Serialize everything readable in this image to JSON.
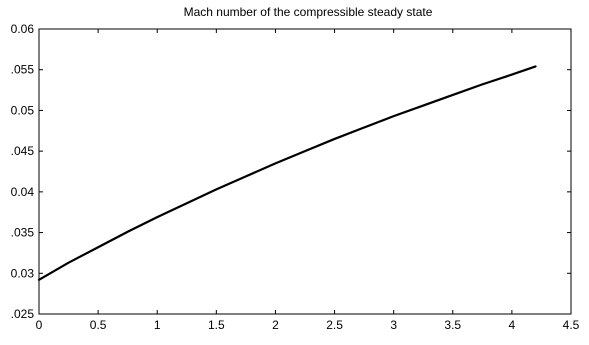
{
  "chart_data": {
    "type": "line",
    "title": "Mach number of the compressible steady state",
    "xlabel": "",
    "ylabel": "",
    "xlim": [
      0,
      4.5
    ],
    "ylim": [
      0.025,
      0.06
    ],
    "grid": false,
    "x_ticks": [
      {
        "value": 0,
        "label": "0"
      },
      {
        "value": 0.5,
        "label": "0.5"
      },
      {
        "value": 1,
        "label": "1"
      },
      {
        "value": 1.5,
        "label": "1.5"
      },
      {
        "value": 2,
        "label": "2"
      },
      {
        "value": 2.5,
        "label": "2.5"
      },
      {
        "value": 3,
        "label": "3"
      },
      {
        "value": 3.5,
        "label": "3.5"
      },
      {
        "value": 4,
        "label": "4"
      },
      {
        "value": 4.5,
        "label": "4.5"
      }
    ],
    "y_ticks": [
      {
        "value": 0.025,
        "label": ".025"
      },
      {
        "value": 0.03,
        "label": "0.03"
      },
      {
        "value": 0.035,
        "label": ".035"
      },
      {
        "value": 0.04,
        "label": "0.04"
      },
      {
        "value": 0.045,
        "label": ".045"
      },
      {
        "value": 0.05,
        "label": "0.05"
      },
      {
        "value": 0.055,
        "label": ".055"
      },
      {
        "value": 0.06,
        "label": "0.06"
      }
    ],
    "series": [
      {
        "color": "#000000",
        "x": [
          0,
          0.25,
          0.5,
          0.75,
          1.0,
          1.25,
          1.5,
          1.75,
          2.0,
          2.25,
          2.5,
          2.75,
          3.0,
          3.25,
          3.5,
          3.75,
          4.0,
          4.2
        ],
        "y": [
          0.0292,
          0.0313,
          0.0332,
          0.0351,
          0.0369,
          0.0386,
          0.0403,
          0.0419,
          0.0435,
          0.045,
          0.0465,
          0.0479,
          0.0493,
          0.0506,
          0.0519,
          0.0532,
          0.0544,
          0.0554
        ]
      }
    ]
  }
}
